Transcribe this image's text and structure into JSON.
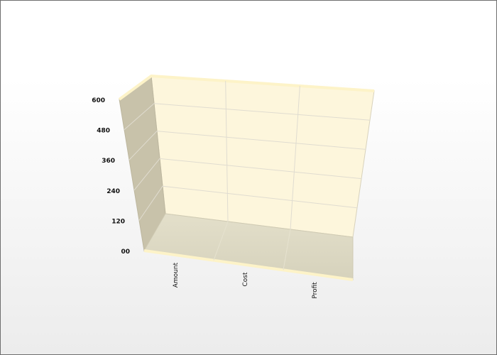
{
  "chart_data": {
    "type": "bar",
    "title": "",
    "xlabel": "",
    "ylabel": "",
    "categories": [
      "Amount",
      "Cost",
      "Profit"
    ],
    "series": [
      {
        "name": "",
        "values": [
          0,
          0,
          0
        ]
      }
    ],
    "ylim": [
      0,
      600
    ],
    "y_ticks": [
      {
        "value": 0,
        "label": "00"
      },
      {
        "value": 120,
        "label": "120"
      },
      {
        "value": 240,
        "label": "240"
      },
      {
        "value": 360,
        "label": "360"
      },
      {
        "value": 480,
        "label": "480"
      },
      {
        "value": 600,
        "label": "600"
      }
    ],
    "grid": true,
    "style": "3d",
    "colors": {
      "back_wall": "#fdf6dc",
      "side_wall": "#c8c2aa",
      "floor": "#ddd9c3",
      "rim": "#fdf3c8",
      "grid": "#e0dcd0"
    }
  }
}
